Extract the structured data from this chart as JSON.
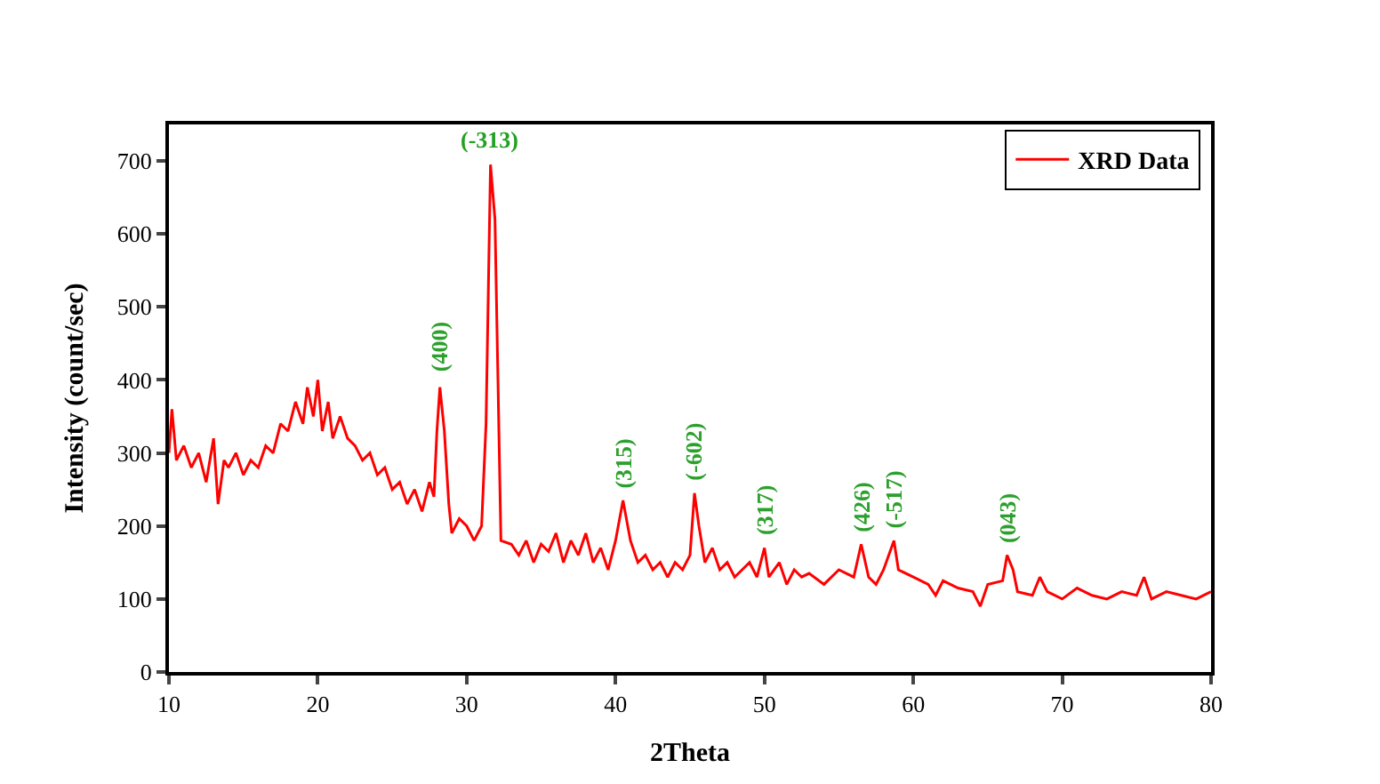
{
  "chart_data": {
    "type": "line",
    "xlabel": "2Theta",
    "ylabel": "Intensity (count/sec)",
    "xlim": [
      10,
      80
    ],
    "xticks": [
      10,
      20,
      30,
      40,
      50,
      60,
      70,
      80
    ],
    "ylim": [
      0,
      750
    ],
    "yticks": [
      0,
      100,
      200,
      300,
      400,
      500,
      600,
      700
    ],
    "legend": "top right",
    "marker": "none",
    "line_style": "solid",
    "series": [
      {
        "name": "XRD Data",
        "color": "#ff0000",
        "x": [
          10,
          10.2,
          10.5,
          11,
          11.5,
          12,
          12.5,
          13,
          13.3,
          13.7,
          14,
          14.5,
          15,
          15.5,
          16,
          16.5,
          17,
          17.5,
          18,
          18.5,
          19,
          19.3,
          19.7,
          20,
          20.3,
          20.7,
          21,
          21.5,
          22,
          22.5,
          23,
          23.5,
          24,
          24.5,
          25,
          25.5,
          26,
          26.5,
          27,
          27.5,
          27.8,
          28,
          28.2,
          28.5,
          28.8,
          29,
          29.5,
          30,
          30.5,
          31,
          31.3,
          31.6,
          31.9,
          32.1,
          32.3,
          33,
          33.5,
          34,
          34.5,
          35,
          35.5,
          36,
          36.5,
          37,
          37.5,
          38,
          38.5,
          39,
          39.5,
          40,
          40.5,
          41,
          41.5,
          42,
          42.5,
          43,
          43.5,
          44,
          44.5,
          45,
          45.3,
          45.6,
          46,
          46.5,
          47,
          47.5,
          48,
          48.5,
          49,
          49.5,
          50,
          50.3,
          51,
          51.5,
          52,
          52.5,
          53,
          54,
          55,
          56,
          56.5,
          57,
          57.5,
          58,
          58.7,
          59,
          60,
          61,
          61.5,
          62,
          63,
          64,
          64.5,
          65,
          66,
          66.3,
          66.7,
          67,
          68,
          68.5,
          69,
          70,
          71,
          72,
          73,
          74,
          75,
          75.5,
          76,
          77,
          78,
          79,
          80
        ],
        "values": [
          300,
          360,
          290,
          310,
          280,
          300,
          260,
          320,
          230,
          290,
          280,
          300,
          270,
          290,
          280,
          310,
          300,
          340,
          330,
          370,
          340,
          390,
          350,
          400,
          330,
          370,
          320,
          350,
          320,
          310,
          290,
          300,
          270,
          280,
          250,
          260,
          230,
          250,
          220,
          260,
          240,
          330,
          390,
          330,
          230,
          190,
          210,
          200,
          180,
          200,
          340,
          695,
          620,
          400,
          180,
          175,
          160,
          180,
          150,
          175,
          165,
          190,
          150,
          180,
          160,
          190,
          150,
          170,
          140,
          180,
          235,
          180,
          150,
          160,
          140,
          150,
          130,
          150,
          140,
          160,
          245,
          200,
          150,
          170,
          140,
          150,
          130,
          140,
          150,
          130,
          170,
          130,
          150,
          120,
          140,
          130,
          135,
          120,
          140,
          130,
          175,
          130,
          120,
          140,
          180,
          140,
          130,
          120,
          105,
          125,
          115,
          110,
          90,
          120,
          125,
          160,
          140,
          110,
          105,
          130,
          110,
          100,
          115,
          105,
          100,
          110,
          105,
          130,
          100,
          110,
          105,
          100,
          110
        ]
      }
    ],
    "annotations": [
      {
        "text": "(400)",
        "x": 28.2,
        "y": 400
      },
      {
        "text": "(-313)",
        "x": 31.6,
        "y": 700
      },
      {
        "text": "(315)",
        "x": 40.5,
        "y": 240
      },
      {
        "text": "(-602)",
        "x": 45.3,
        "y": 250
      },
      {
        "text": "(317)",
        "x": 50,
        "y": 175
      },
      {
        "text": "(426)",
        "x": 56.5,
        "y": 180
      },
      {
        "text": "(-517)",
        "x": 58.7,
        "y": 185
      },
      {
        "text": "(043)",
        "x": 66.3,
        "y": 165
      }
    ]
  }
}
